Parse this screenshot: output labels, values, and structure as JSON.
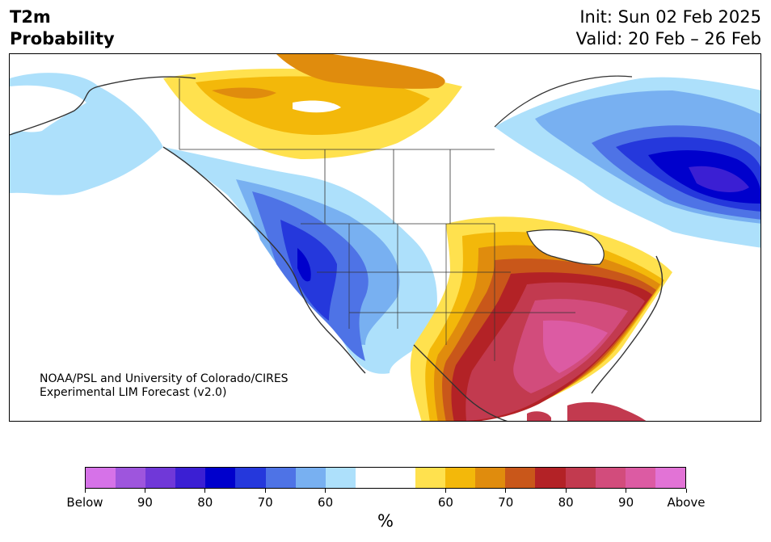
{
  "header": {
    "variable_line1": "T2m",
    "variable_line2": "Probability",
    "init": "Init: Sun 02 Feb 2025",
    "valid": "Valid: 20 Feb – 26 Feb"
  },
  "credit": {
    "line1": "NOAA/PSL and University of Colorado/CIRES",
    "line2": "Experimental LIM Forecast (v2.0)"
  },
  "colorbar": {
    "colors": [
      "#d672e8",
      "#9e55dd",
      "#7038d8",
      "#3b1fd3",
      "#0000cc",
      "#2538dc",
      "#4e73e6",
      "#78b0f1",
      "#ade0fb",
      "#ffffff",
      "#ffffff",
      "#ffe14e",
      "#f3b80a",
      "#e08c0d",
      "#c9571a",
      "#b32226",
      "#c23a4f",
      "#d24c7c",
      "#dc5ba3",
      "#e273d6"
    ],
    "tick_labels": [
      "Below",
      "90",
      "80",
      "70",
      "60",
      "60",
      "70",
      "80",
      "90",
      "Above"
    ],
    "unit": "%"
  },
  "map": {
    "land_color": "#ffffff",
    "border_color": "#333333",
    "coast_color": "#333333"
  }
}
